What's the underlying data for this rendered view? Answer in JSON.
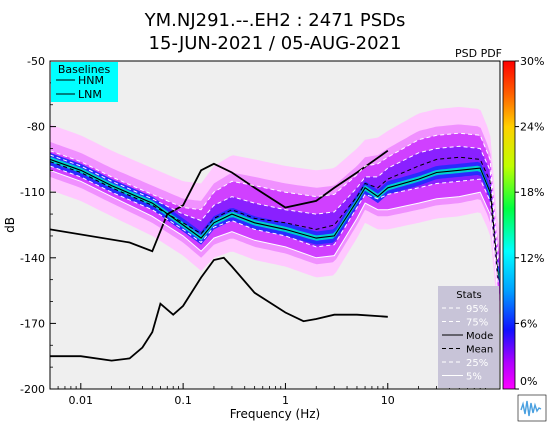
{
  "chart_data": {
    "type": "heatmap",
    "title": "YM.NJ291.--.EH2 : 2471 PSDs",
    "subtitle": "15-JUN-2021 / 05-AUG-2021",
    "corner_label": "PSD PDF",
    "xlabel": "Frequency (Hz)",
    "ylabel": "dB",
    "x_scale": "log",
    "xlim": [
      0.005,
      125
    ],
    "ylim": [
      -200,
      -50
    ],
    "x_ticks": [
      {
        "value": 0.01,
        "label": "0.01"
      },
      {
        "value": 0.1,
        "label": "0.1"
      },
      {
        "value": 1,
        "label": "1"
      },
      {
        "value": 10,
        "label": "10"
      }
    ],
    "y_ticks": [
      {
        "value": -50,
        "label": "-50"
      },
      {
        "value": -80,
        "label": "-80"
      },
      {
        "value": -110,
        "label": "-110"
      },
      {
        "value": -140,
        "label": "-140"
      },
      {
        "value": -170,
        "label": "-170"
      },
      {
        "value": -200,
        "label": "-200"
      }
    ],
    "colorbar": {
      "range": [
        0,
        30
      ],
      "ticks": [
        {
          "value": 30,
          "label": "30%"
        },
        {
          "value": 24,
          "label": "24%"
        },
        {
          "value": 18,
          "label": "18%"
        },
        {
          "value": 12,
          "label": "12%"
        },
        {
          "value": 6,
          "label": "6%"
        },
        {
          "value": 0,
          "label": "0%"
        }
      ]
    },
    "baselines_legend": {
      "title": "Baselines",
      "items": [
        {
          "label": "HNM",
          "color": "#000000"
        },
        {
          "label": "LNM",
          "color": "#000000"
        }
      ],
      "background": "#00ffff"
    },
    "stats_legend": {
      "title": "Stats",
      "items": [
        {
          "label": "95%",
          "style": "dashed",
          "color": "#ffffff"
        },
        {
          "label": "75%",
          "style": "dashed",
          "color": "#ffffff"
        },
        {
          "label": "Mode",
          "style": "solid",
          "color": "#000000"
        },
        {
          "label": "Mean",
          "style": "dashed",
          "color": "#000000"
        },
        {
          "label": "25%",
          "style": "dashed",
          "color": "#ffffff"
        },
        {
          "label": "5%",
          "style": "solid",
          "color": "#ffffff"
        }
      ],
      "background": "#c8c4d8"
    },
    "series": [
      {
        "name": "HNM",
        "x": [
          0.005,
          0.03,
          0.05,
          0.07,
          0.1,
          0.15,
          0.2,
          0.3,
          0.5,
          1,
          2,
          3,
          5,
          10
        ],
        "y": [
          -127,
          -133,
          -137,
          -120,
          -116,
          -100,
          -97,
          -101,
          -108,
          -117,
          -114,
          -108,
          -101,
          -91
        ]
      },
      {
        "name": "LNM",
        "x": [
          0.005,
          0.01,
          0.02,
          0.03,
          0.04,
          0.05,
          0.06,
          0.08,
          0.1,
          0.15,
          0.2,
          0.25,
          0.3,
          0.5,
          1,
          1.5,
          2,
          3,
          5,
          10
        ],
        "y": [
          -185,
          -185,
          -187,
          -186,
          -181,
          -174,
          -161,
          -166,
          -162,
          -149,
          -141,
          -140,
          -144,
          -156,
          -165,
          -169,
          -168,
          -166,
          -166,
          -167
        ]
      },
      {
        "name": "Mode",
        "x": [
          0.005,
          0.01,
          0.02,
          0.05,
          0.1,
          0.15,
          0.2,
          0.3,
          0.5,
          1,
          2,
          3,
          5,
          6,
          8,
          10,
          20,
          30,
          50,
          80,
          100,
          120
        ],
        "y": [
          -95,
          -100,
          -107,
          -115,
          -125,
          -131,
          -124,
          -120,
          -124,
          -127,
          -131,
          -130,
          -114,
          -108,
          -112,
          -108,
          -104,
          -101,
          -100,
          -99,
          -110,
          -150
        ]
      },
      {
        "name": "Mean",
        "x": [
          0.005,
          0.01,
          0.02,
          0.05,
          0.1,
          0.15,
          0.2,
          0.3,
          0.5,
          1,
          2,
          3,
          5,
          6,
          8,
          10,
          20,
          30,
          50,
          80,
          100,
          120
        ],
        "y": [
          -96,
          -101,
          -108,
          -116,
          -124,
          -129,
          -122,
          -118,
          -122,
          -124,
          -127,
          -125,
          -112,
          -106,
          -108,
          -104,
          -98,
          -95,
          -94,
          -95,
          -105,
          -148
        ]
      },
      {
        "name": "95%",
        "x": [
          0.005,
          0.01,
          0.02,
          0.05,
          0.1,
          0.15,
          0.2,
          0.3,
          0.5,
          1,
          2,
          3,
          5,
          6,
          8,
          10,
          20,
          30,
          50,
          80,
          100,
          120
        ],
        "y": [
          -91,
          -96,
          -103,
          -111,
          -117,
          -118,
          -110,
          -105,
          -107,
          -110,
          -112,
          -111,
          -102,
          -98,
          -97,
          -94,
          -86,
          -84,
          -83,
          -84,
          -95,
          -140
        ]
      },
      {
        "name": "75%",
        "x": [
          0.005,
          0.01,
          0.02,
          0.05,
          0.1,
          0.15,
          0.2,
          0.3,
          0.5,
          1,
          2,
          3,
          5,
          6,
          8,
          10,
          20,
          30,
          50,
          80,
          100,
          120
        ],
        "y": [
          -93,
          -98,
          -105,
          -113,
          -120,
          -123,
          -116,
          -112,
          -115,
          -118,
          -120,
          -119,
          -108,
          -103,
          -103,
          -99,
          -92,
          -90,
          -89,
          -90,
          -100,
          -144
        ]
      },
      {
        "name": "25%",
        "x": [
          0.005,
          0.01,
          0.02,
          0.05,
          0.1,
          0.15,
          0.2,
          0.3,
          0.5,
          1,
          2,
          3,
          5,
          6,
          8,
          10,
          20,
          30,
          50,
          80,
          100,
          120
        ],
        "y": [
          -98,
          -103,
          -110,
          -118,
          -127,
          -133,
          -126,
          -123,
          -127,
          -130,
          -135,
          -134,
          -117,
          -111,
          -113,
          -111,
          -108,
          -106,
          -105,
          -104,
          -114,
          -152
        ]
      },
      {
        "name": "5%",
        "x": [
          0.005,
          0.01,
          0.02,
          0.05,
          0.1,
          0.15,
          0.2,
          0.3,
          0.5,
          1,
          2,
          3,
          5,
          6,
          8,
          10,
          20,
          30,
          50,
          80,
          100,
          120
        ],
        "y": [
          -100,
          -105,
          -112,
          -121,
          -130,
          -137,
          -131,
          -128,
          -132,
          -135,
          -140,
          -139,
          -122,
          -115,
          -118,
          -118,
          -115,
          -113,
          -112,
          -110,
          -120,
          -158
        ]
      }
    ]
  }
}
